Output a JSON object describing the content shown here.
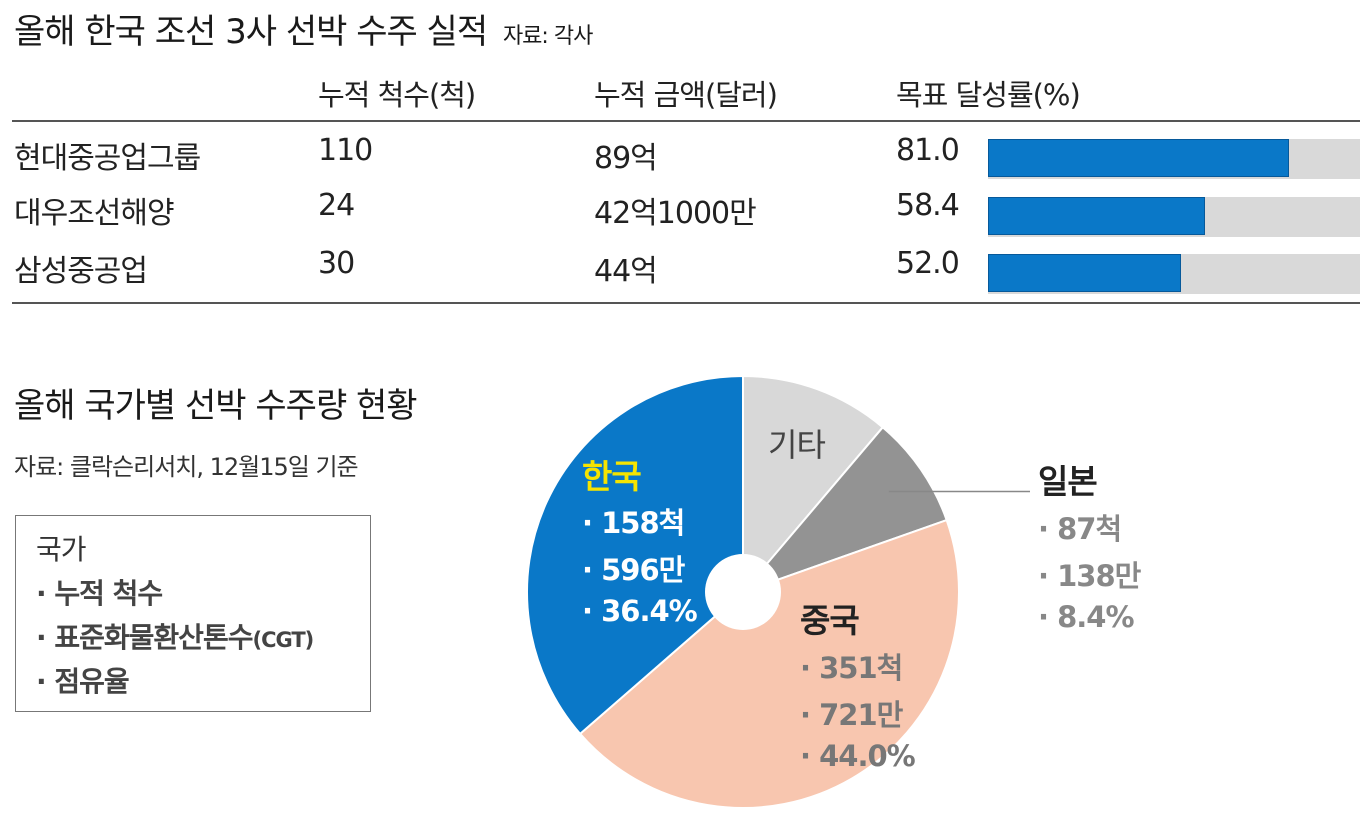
{
  "section1": {
    "title": "올해 한국 조선 3사 선박 수주 실적",
    "source": "자료: 각사",
    "columns": [
      "누적 척수(척)",
      "누적 금액(달러)",
      "목표 달성률(%)"
    ],
    "rows": [
      {
        "company": "현대중공업그룹",
        "ships": "110",
        "amount": "89억",
        "rate": "81.0",
        "rate_value": 81.0
      },
      {
        "company": "대우조선해양",
        "ships": "24",
        "amount": "42억1000만",
        "rate": "58.4",
        "rate_value": 58.4
      },
      {
        "company": "삼성중공업",
        "ships": "30",
        "amount": "44억",
        "rate": "52.0",
        "rate_value": 52.0
      }
    ],
    "bar_color": "#0a78c8",
    "track_color": "#d9d9d9"
  },
  "section2": {
    "title": "올해 국가별 선박 수주량 현황",
    "source": "자료: 클락슨리서치, 12월15일 기준",
    "legend": {
      "header": "국가",
      "items": [
        "· 누적 척수",
        "· 표준화물환산톤수",
        "(CGT)",
        "· 점유율"
      ]
    }
  },
  "chart_data": {
    "type": "pie",
    "title": "올해 국가별 선박 수주량 현황",
    "slices": [
      {
        "name": "기타",
        "share": 11.2,
        "color": "#d8d8d8",
        "lines": []
      },
      {
        "name": "일본",
        "share": 8.4,
        "color": "#939393",
        "lines": [
          "· 87척",
          "· 138만",
          "· 8.4%"
        ]
      },
      {
        "name": "중국",
        "share": 44.0,
        "color": "#f8c6af",
        "lines": [
          "· 351척",
          "· 721만",
          "· 44.0%"
        ]
      },
      {
        "name": "한국",
        "share": 36.4,
        "color": "#0a78c8",
        "lines": [
          "· 158척",
          "· 596만",
          "· 36.4%"
        ]
      }
    ]
  }
}
